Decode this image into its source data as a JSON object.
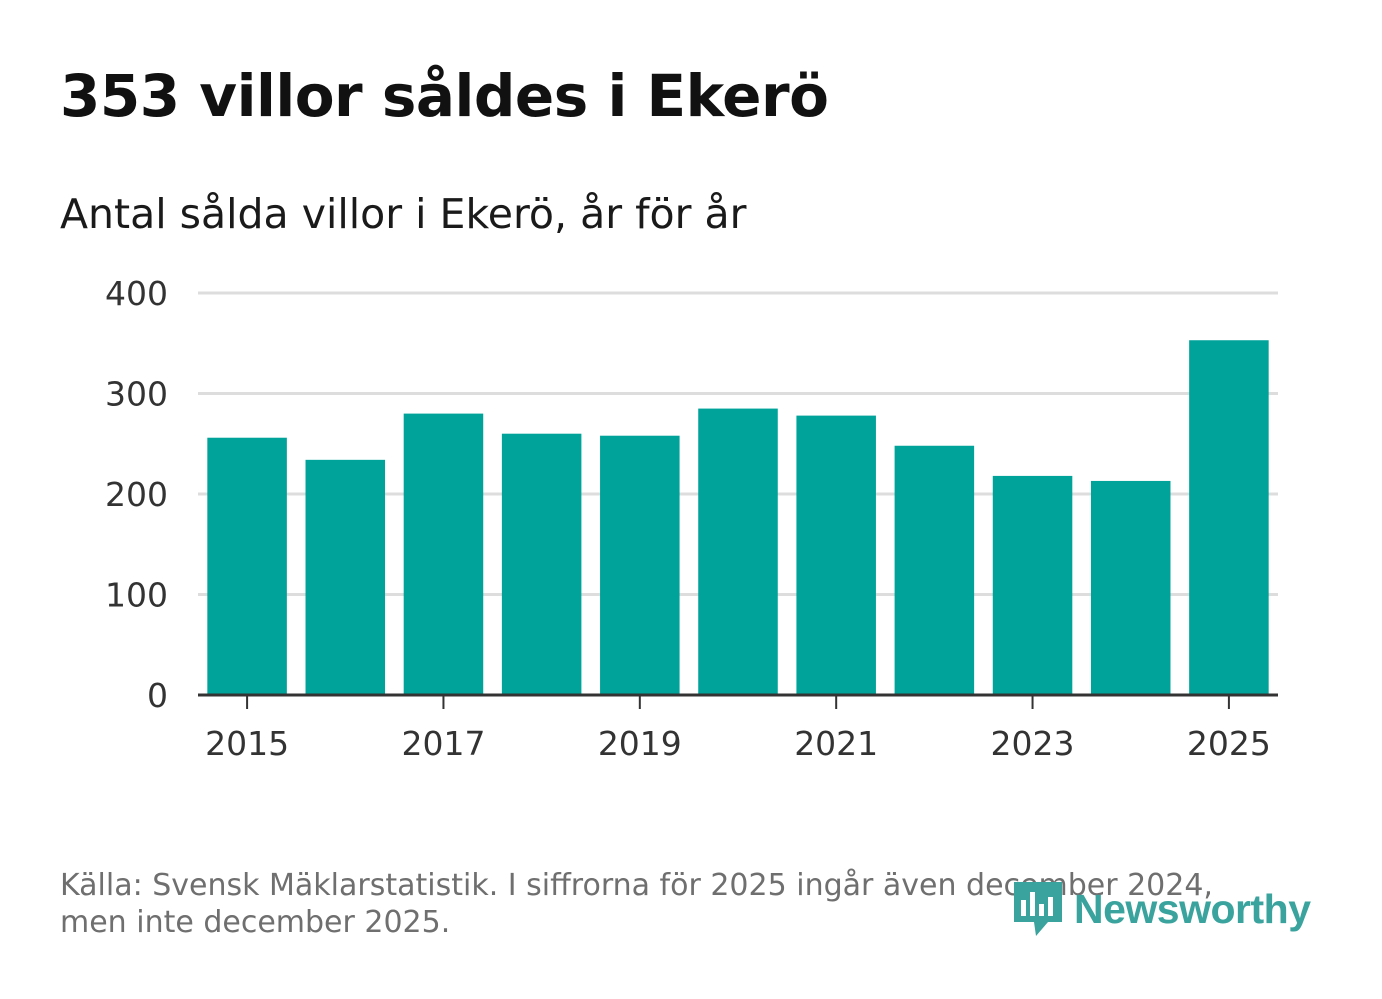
{
  "title": "353 villor såldes i Ekerö",
  "subtitle": "Antal sålda villor i Ekerö, år för år",
  "source": {
    "line1": "Källa: Svensk Mäklarstatistik. I siffrorna för 2025 ingår även december 2024,",
    "line2": "men inte december 2025."
  },
  "logo": {
    "text": "Newsworthy",
    "icon": "newsworthy-chart-bubble-icon",
    "color": "#3aa39d"
  },
  "colors": {
    "bar": "#00a39a",
    "grid": "#dddddd",
    "axis": "#333333"
  },
  "chart_data": {
    "type": "bar",
    "title": "Antal sålda villor i Ekerö, år för år",
    "xlabel": "",
    "ylabel": "",
    "categories": [
      "2015",
      "2016",
      "2017",
      "2018",
      "2019",
      "2020",
      "2021",
      "2022",
      "2023",
      "2024",
      "2025"
    ],
    "values": [
      256,
      234,
      280,
      260,
      258,
      285,
      278,
      248,
      218,
      213,
      353
    ],
    "ylim": [
      0,
      400
    ],
    "yticks": [
      0,
      100,
      200,
      300,
      400
    ],
    "xticks": [
      "2015",
      "2017",
      "2019",
      "2021",
      "2023",
      "2025"
    ],
    "grid": true,
    "legend": "none"
  }
}
